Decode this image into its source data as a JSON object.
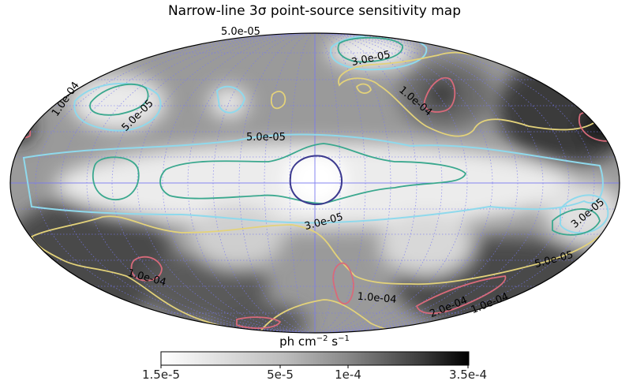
{
  "title": "Narrow-line 3σ point-source sensitivity map",
  "colorbar": {
    "label_prefix": "ph cm",
    "label_exp1": "−2",
    "label_mid": " s",
    "label_exp2": "−1",
    "ticks": [
      "1.5e-5",
      "5e-5",
      "1e-4",
      "3.5e-4"
    ],
    "range": [
      1.5e-05,
      0.00035
    ],
    "scale": "log",
    "colormap": "greys"
  },
  "contour_labels": [
    "5.0e-05",
    "3.0e-05",
    "1.0e-04",
    "5.0e-05",
    "1.0e-04",
    "5.0e-05",
    "3.0e-05",
    "3.0e-05",
    "5.0e-05",
    "1.0e-04",
    "1.0e-04",
    "2.0e-04",
    "1.0e-04"
  ],
  "contour_colors": {
    "3.0e-05": "#3c3a8f",
    "5.0e-05": "#3aa88e",
    "1.0e-04": "#e3d27a",
    "2.0e-04": "#d86a7a",
    "cyan": "#8fd9ec"
  },
  "projection": "mollweide",
  "grid_color": "#7a7af0"
}
